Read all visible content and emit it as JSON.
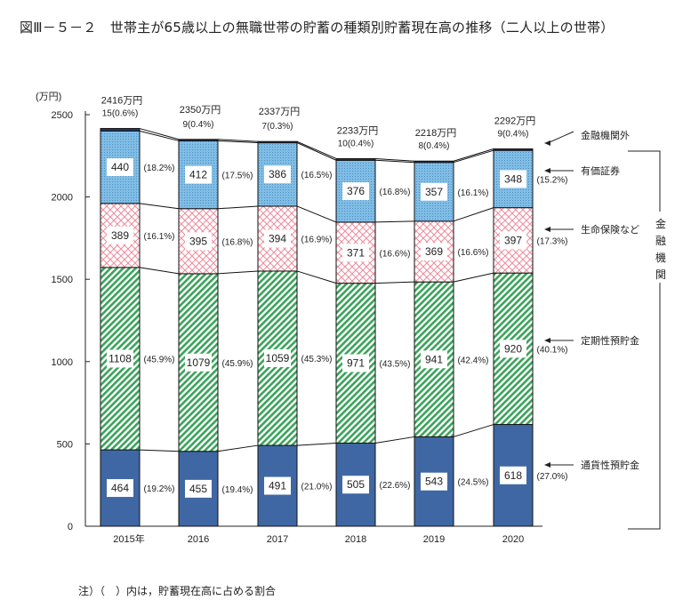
{
  "title": "図Ⅲ－５－２　世帯主が65歳以上の無職世帯の貯蓄の種類別貯蓄現在高の推移（二人以上の世帯）",
  "note": "注）（　）内は，貯蓄現在高に占める割合",
  "chart_data": {
    "type": "bar",
    "stacked": true,
    "ylabel": "(万円)",
    "ylim": [
      0,
      2500
    ],
    "yticks": [
      0,
      500,
      1000,
      1500,
      2000,
      2500
    ],
    "categories": [
      "2015年",
      "2016",
      "2017",
      "2018",
      "2019",
      "2020"
    ],
    "totals": [
      "2416万円",
      "2350万円",
      "2337万円",
      "2233万円",
      "2218万円",
      "2292万円"
    ],
    "series": [
      {
        "name": "通貨性預貯金",
        "color": "#3f67a3",
        "values": [
          464,
          455,
          491,
          505,
          543,
          618
        ],
        "shares": [
          "(19.2%)",
          "(19.4%)",
          "(21.0%)",
          "(22.6%)",
          "(24.5%)",
          "(27.0%)"
        ]
      },
      {
        "name": "定期性預貯金",
        "color": "#3aa35a",
        "values": [
          1108,
          1079,
          1059,
          971,
          941,
          920
        ],
        "shares": [
          "(45.9%)",
          "(45.9%)",
          "(45.3%)",
          "(43.5%)",
          "(42.4%)",
          "(40.1%)"
        ]
      },
      {
        "name": "生命保険など",
        "color": "#f08a9a",
        "values": [
          389,
          395,
          394,
          371,
          369,
          397
        ],
        "shares": [
          "(16.1%)",
          "(16.8%)",
          "(16.9%)",
          "(16.6%)",
          "(16.6%)",
          "(17.3%)"
        ]
      },
      {
        "name": "有価証券",
        "color": "#6fb3e0",
        "values": [
          440,
          412,
          386,
          376,
          357,
          348
        ],
        "shares": [
          "(18.2%)",
          "(17.5%)",
          "(16.5%)",
          "(16.8%)",
          "(16.1%)",
          "(15.2%)"
        ]
      },
      {
        "name": "金融機関外",
        "color": "#1f3a6b",
        "values": [
          15,
          9,
          7,
          10,
          8,
          9
        ],
        "labels": [
          "15(0.6%)",
          "9(0.4%)",
          "7(0.3%)",
          "10(0.4%)",
          "8(0.4%)",
          "9(0.4%)"
        ]
      }
    ],
    "bracket_label": "金融機関",
    "grid": false,
    "legend": "right"
  }
}
